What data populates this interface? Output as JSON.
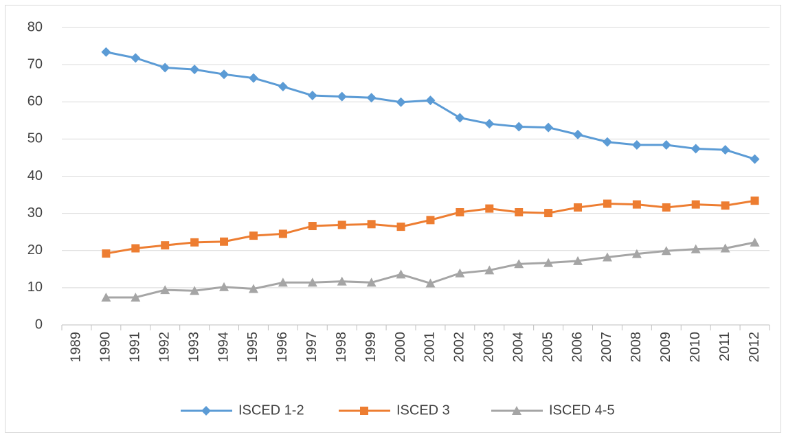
{
  "chart_data": {
    "type": "line",
    "categories": [
      "1989",
      "1990",
      "1991",
      "1992",
      "1993",
      "1994",
      "1995",
      "1996",
      "1997",
      "1998",
      "1999",
      "2000",
      "2001",
      "2002",
      "2003",
      "2004",
      "2005",
      "2006",
      "2007",
      "2008",
      "2009",
      "2010",
      "2011",
      "2012"
    ],
    "series": [
      {
        "name": "ISCED 1-2",
        "color": "#5b9bd5",
        "marker": "diamond",
        "values": [
          null,
          73.4,
          71.8,
          69.2,
          68.7,
          67.4,
          66.4,
          64.1,
          61.7,
          61.4,
          61.1,
          59.9,
          60.4,
          55.7,
          54.1,
          53.3,
          53.1,
          51.2,
          49.2,
          48.4,
          48.4,
          47.4,
          47.1,
          44.6
        ]
      },
      {
        "name": "ISCED 3",
        "color": "#ed7d31",
        "marker": "square",
        "values": [
          null,
          19.2,
          20.6,
          21.4,
          22.2,
          22.4,
          24.0,
          24.5,
          26.6,
          26.9,
          27.1,
          26.4,
          28.2,
          30.3,
          31.3,
          30.3,
          30.1,
          31.6,
          32.6,
          32.4,
          31.6,
          32.4,
          32.1,
          33.4
        ]
      },
      {
        "name": "ISCED 4-5",
        "color": "#a5a5a5",
        "marker": "triangle",
        "values": [
          null,
          7.4,
          7.4,
          9.4,
          9.2,
          10.2,
          9.7,
          11.4,
          11.4,
          11.7,
          11.4,
          13.6,
          11.2,
          13.9,
          14.7,
          16.4,
          16.7,
          17.2,
          18.2,
          19.1,
          19.9,
          20.4,
          20.6,
          22.2
        ]
      }
    ],
    "ylim": [
      0,
      80
    ],
    "yticks": [
      0,
      10,
      20,
      30,
      40,
      50,
      60,
      70,
      80
    ],
    "grid": true,
    "legend": "bottom"
  }
}
